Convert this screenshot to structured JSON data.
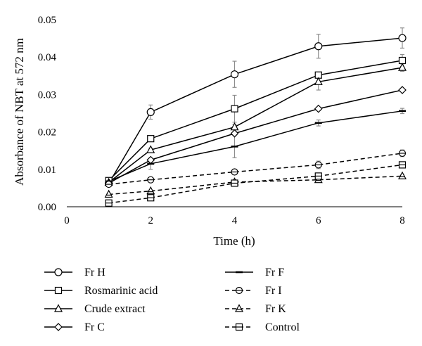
{
  "chart_data": {
    "type": "line",
    "xlabel": "Time (h)",
    "ylabel": "Absorbance of NBT at 572 nm",
    "xlim": [
      0,
      8
    ],
    "ylim": [
      0,
      0.05
    ],
    "x_ticks": [
      "0",
      "2",
      "4",
      "6",
      "8"
    ],
    "y_ticks": [
      "0.00",
      "0.01",
      "0.02",
      "0.03",
      "0.04",
      "0.05"
    ],
    "x_tick_values": [
      0,
      2,
      4,
      6,
      8
    ],
    "y_tick_values": [
      0,
      0.01,
      0.02,
      0.03,
      0.04,
      0.05
    ],
    "grid": false,
    "legend_position": "bottom",
    "series": [
      {
        "name": "Fr H",
        "marker": "circle",
        "dashed": false,
        "x": [
          1,
          2,
          4,
          6,
          8
        ],
        "y": [
          0.0062,
          0.0253,
          0.0354,
          0.0429,
          0.0451
        ],
        "err": [
          0.0004,
          0.0019,
          0.0035,
          0.0032,
          0.0027
        ]
      },
      {
        "name": "Rosmarinic acid",
        "marker": "square",
        "dashed": false,
        "x": [
          1,
          2,
          4,
          6,
          8
        ],
        "y": [
          0.007,
          0.0182,
          0.0262,
          0.0352,
          0.0391
        ],
        "err": [
          0.0003,
          0.0005,
          0.0036,
          0.0004,
          0.0016
        ]
      },
      {
        "name": "Crude extract",
        "marker": "triangle",
        "dashed": false,
        "x": [
          1,
          2,
          4,
          6,
          8
        ],
        "y": [
          0.0065,
          0.0152,
          0.0213,
          0.0334,
          0.0372
        ],
        "err": [
          0.0003,
          0.0005,
          0.0006,
          0.0022,
          0.001
        ]
      },
      {
        "name": "Fr C",
        "marker": "diamond",
        "dashed": false,
        "x": [
          1,
          2,
          4,
          6,
          8
        ],
        "y": [
          0.0063,
          0.0125,
          0.0196,
          0.0262,
          0.0312
        ],
        "err": [
          0.0003,
          0.0004,
          0.0005,
          0.0003,
          0.0004
        ]
      },
      {
        "name": "Fr F",
        "marker": "dash",
        "dashed": false,
        "x": [
          1,
          2,
          4,
          6,
          8
        ],
        "y": [
          0.0068,
          0.0115,
          0.0161,
          0.0224,
          0.0256
        ],
        "err": [
          0.0003,
          0.0015,
          0.003,
          0.0008,
          0.0007
        ]
      },
      {
        "name": "Fr I",
        "marker": "circle-line",
        "dashed": true,
        "x": [
          1,
          2,
          4,
          6,
          8
        ],
        "y": [
          0.006,
          0.0072,
          0.0093,
          0.0112,
          0.0143
        ],
        "err": [
          0.0003,
          0.0004,
          0.0004,
          0.001,
          0.0009
        ]
      },
      {
        "name": "Fr K",
        "marker": "triangle-line",
        "dashed": true,
        "x": [
          1,
          2,
          4,
          6,
          8
        ],
        "y": [
          0.0033,
          0.0042,
          0.0066,
          0.0072,
          0.0082
        ],
        "err": [
          0.0003,
          0.0003,
          0.0004,
          0.0004,
          0.0003
        ]
      },
      {
        "name": "Control",
        "marker": "square-line",
        "dashed": true,
        "x": [
          1,
          2,
          4,
          6,
          8
        ],
        "y": [
          0.001,
          0.0024,
          0.0063,
          0.0082,
          0.0112
        ],
        "err": [
          0.0002,
          0.0003,
          0.0006,
          0.0008,
          0.0007
        ]
      }
    ]
  },
  "colors": {
    "line": "#000000",
    "error_bar": "#8c8c8c",
    "marker_fill": "#ffffff",
    "background": "#ffffff"
  }
}
